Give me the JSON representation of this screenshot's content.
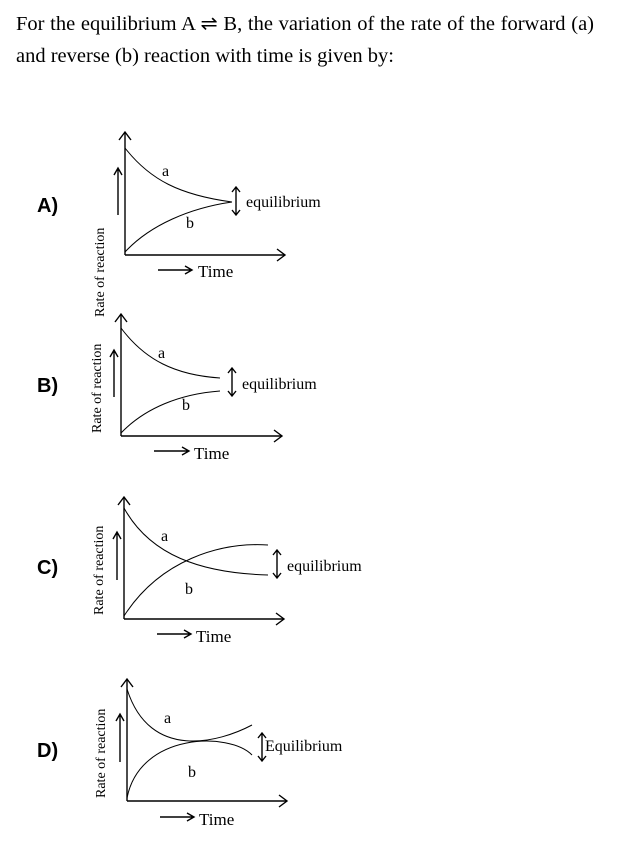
{
  "question": {
    "text": "For the equilibrium A ⇌ B, the variation of the rate of the forward (a) and reverse (b) reaction with time is given by:"
  },
  "options": [
    {
      "label": "A)",
      "ylabel": "Rate of reaction",
      "xlabel": "Time",
      "curve_a": "a",
      "curve_b": "b",
      "eq_label": "equilibrium"
    },
    {
      "label": "B)",
      "ylabel": "Rate of reaction",
      "xlabel": "Time",
      "curve_a": "a",
      "curve_b": "b",
      "eq_label": "equilibrium"
    },
    {
      "label": "C)",
      "ylabel": "Rate of reaction",
      "xlabel": "Time",
      "curve_a": "a",
      "curve_b": "b",
      "eq_label": "equilibrium"
    },
    {
      "label": "D)",
      "ylabel": "Rate of reaction",
      "xlabel": "Time",
      "curve_a": "a",
      "curve_b": "b",
      "eq_label": "Equilibrium"
    }
  ]
}
